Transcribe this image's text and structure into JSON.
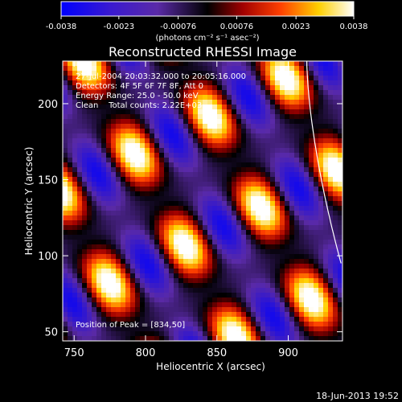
{
  "colorbar": {
    "tick_labels": [
      "-0.0038",
      "-0.0023",
      "-0.00076",
      "0.00076",
      "0.0023",
      "0.0038"
    ],
    "ticks": [
      -0.0038,
      -0.0023,
      -0.00076,
      0.00076,
      0.0023,
      0.0038
    ],
    "range": [
      -0.0038,
      0.0038
    ],
    "units_label": "(photons cm⁻² s⁻¹ asec⁻²)",
    "colormap": [
      "#0000ff",
      "#5a2aa7",
      "#000000",
      "#a00000",
      "#ff4000",
      "#ffd000",
      "#ffffff"
    ]
  },
  "title": "Reconstructed RHESSI Image",
  "info_lines": [
    "27-Jul-2004 20:03:32.000 to 20:05:16.000",
    "Detectors: 4F 5F 6F 7F 8F, Att 0",
    "Energy Range: 25.0 - 50.0 keV",
    "Clean    Total counts: 2.22E+03"
  ],
  "peak_text": "Position of Peak = [834,50]",
  "axes": {
    "xlabel": "Heliocentric X (arcsec)",
    "ylabel": "Heliocentric Y (arcsec)",
    "xlim": [
      742,
      938
    ],
    "ylim": [
      44,
      228
    ],
    "xticks": [
      750,
      800,
      850,
      900
    ],
    "xtick_labels": [
      "750",
      "800",
      "850",
      "900"
    ],
    "yticks": [
      50,
      100,
      150,
      200
    ],
    "ytick_labels": [
      "50",
      "100",
      "150",
      "200"
    ]
  },
  "limb_color": "#ffffff",
  "footer_date": "18-Jun-2013 19:52"
}
